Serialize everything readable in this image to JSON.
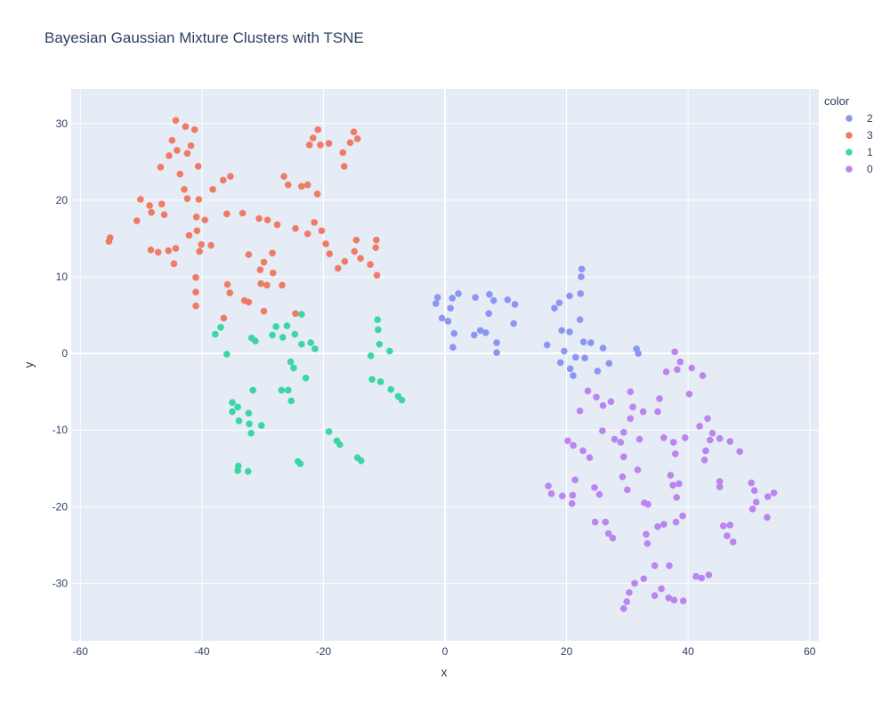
{
  "chart_data": {
    "type": "scatter",
    "title": "Bayesian Gaussian Mixture Clusters with TSNE",
    "xlabel": "x",
    "ylabel": "y",
    "xlim": [
      -61.5,
      61.5
    ],
    "ylim": [
      -37.5,
      34.5
    ],
    "xticks": [
      -60,
      -40,
      -20,
      0,
      20,
      40,
      60
    ],
    "yticks": [
      -30,
      -20,
      -10,
      0,
      10,
      20,
      30
    ],
    "grid": true,
    "legend": {
      "title": "color",
      "placement": "right"
    },
    "series": [
      {
        "name": "2",
        "color": "#8b96f3",
        "points": [
          [
            -1.5,
            6.5
          ],
          [
            -1.2,
            7.3
          ],
          [
            -0.5,
            4.6
          ],
          [
            0.5,
            4.2
          ],
          [
            0.9,
            5.9
          ],
          [
            1.2,
            7.2
          ],
          [
            1.5,
            2.6
          ],
          [
            1.3,
            0.8
          ],
          [
            2.2,
            7.8
          ],
          [
            5,
            7.3
          ],
          [
            4.8,
            2.4
          ],
          [
            5.8,
            3
          ],
          [
            6.7,
            2.7
          ],
          [
            7.2,
            5.2
          ],
          [
            7.3,
            7.7
          ],
          [
            8,
            6.9
          ],
          [
            8.5,
            1.4
          ],
          [
            8.5,
            0.1
          ],
          [
            10.3,
            7
          ],
          [
            11.5,
            6.4
          ],
          [
            11.3,
            3.9
          ],
          [
            16.8,
            1.1
          ],
          [
            18,
            5.9
          ],
          [
            18.8,
            6.6
          ],
          [
            19,
            -1.2
          ],
          [
            19.2,
            3
          ],
          [
            19.6,
            0.3
          ],
          [
            20.5,
            2.8
          ],
          [
            20.5,
            7.5
          ],
          [
            20.6,
            -2
          ],
          [
            21.1,
            -2.9
          ],
          [
            21.5,
            -0.5
          ],
          [
            22.2,
            4.4
          ],
          [
            22.3,
            7.8
          ],
          [
            22.4,
            10
          ],
          [
            22.5,
            11
          ],
          [
            22.8,
            1.5
          ],
          [
            23,
            -0.6
          ],
          [
            24,
            1.4
          ],
          [
            25.1,
            -2.3
          ],
          [
            26,
            0.7
          ],
          [
            27,
            -1.3
          ],
          [
            31.5,
            0.6
          ],
          [
            31.8,
            0
          ]
        ]
      },
      {
        "name": "3",
        "color": "#ef7b67",
        "points": [
          [
            -55.3,
            14.6
          ],
          [
            -55.1,
            15.1
          ],
          [
            -50.7,
            17.3
          ],
          [
            -50.1,
            20.1
          ],
          [
            -48.6,
            19.3
          ],
          [
            -48.3,
            18.4
          ],
          [
            -48.4,
            13.5
          ],
          [
            -47.2,
            13.2
          ],
          [
            -46.6,
            19.5
          ],
          [
            -46.2,
            18.1
          ],
          [
            -45.5,
            13.4
          ],
          [
            -44.6,
            11.7
          ],
          [
            -44.3,
            13.7
          ],
          [
            -46.8,
            24.3
          ],
          [
            -45.4,
            25.8
          ],
          [
            -44.9,
            27.8
          ],
          [
            -44.1,
            26.5
          ],
          [
            -43.6,
            23.4
          ],
          [
            -44.3,
            30.4
          ],
          [
            -42.9,
            21.4
          ],
          [
            -42.7,
            29.6
          ],
          [
            -42.4,
            26.1
          ],
          [
            -42.4,
            20.2
          ],
          [
            -42.1,
            15.4
          ],
          [
            -41.8,
            27.1
          ],
          [
            -41.2,
            29.2
          ],
          [
            -40.6,
            24.4
          ],
          [
            -40.8,
            16
          ],
          [
            -40.9,
            17.8
          ],
          [
            -40.5,
            20.1
          ],
          [
            -40.4,
            13.3
          ],
          [
            -40.1,
            14.2
          ],
          [
            -39.5,
            17.4
          ],
          [
            -38.5,
            14.1
          ],
          [
            -38.2,
            21.4
          ],
          [
            -41,
            9.9
          ],
          [
            -41,
            8
          ],
          [
            -41,
            6.2
          ],
          [
            -36.5,
            22.6
          ],
          [
            -35.9,
            18.2
          ],
          [
            -35.3,
            23.1
          ],
          [
            -35.8,
            9
          ],
          [
            -35.4,
            7.9
          ],
          [
            -36.4,
            4.6
          ],
          [
            -33.3,
            18.3
          ],
          [
            -33,
            6.9
          ],
          [
            -32.3,
            6.7
          ],
          [
            -32.3,
            12.9
          ],
          [
            -30.6,
            17.6
          ],
          [
            -30.4,
            10.9
          ],
          [
            -30.3,
            9.1
          ],
          [
            -29.8,
            11.9
          ],
          [
            -29.8,
            5.5
          ],
          [
            -29.2,
            17.4
          ],
          [
            -29.3,
            8.9
          ],
          [
            -28.4,
            13.1
          ],
          [
            -28.3,
            10.5
          ],
          [
            -27.6,
            16.8
          ],
          [
            -26.8,
            8.9
          ],
          [
            -26.5,
            23.1
          ],
          [
            -25.8,
            22
          ],
          [
            -24.6,
            16.3
          ],
          [
            -24.6,
            5.2
          ],
          [
            -23.6,
            21.8
          ],
          [
            -22.6,
            22
          ],
          [
            -22.6,
            15.6
          ],
          [
            -22.3,
            27.2
          ],
          [
            -21.7,
            28.1
          ],
          [
            -21.5,
            17.1
          ],
          [
            -21,
            20.8
          ],
          [
            -20.9,
            29.2
          ],
          [
            -20.5,
            27.2
          ],
          [
            -20.3,
            16
          ],
          [
            -19.6,
            14.3
          ],
          [
            -19.1,
            27.4
          ],
          [
            -19,
            13
          ],
          [
            -17.6,
            11.1
          ],
          [
            -16.8,
            26.2
          ],
          [
            -16.6,
            24.4
          ],
          [
            -16.5,
            12
          ],
          [
            -15.6,
            27.5
          ],
          [
            -15,
            28.9
          ],
          [
            -14.9,
            13.3
          ],
          [
            -14.6,
            14.8
          ],
          [
            -14.4,
            28
          ],
          [
            -13.9,
            12.4
          ],
          [
            -12.3,
            11.6
          ],
          [
            -11.3,
            14.8
          ],
          [
            -11.4,
            13.8
          ],
          [
            -11.2,
            10.2
          ]
        ]
      },
      {
        "name": "1",
        "color": "#3dd6a3",
        "points": [
          [
            -37.8,
            2.5
          ],
          [
            -36.9,
            3.4
          ],
          [
            -35.9,
            -0.1
          ],
          [
            -35,
            -6.4
          ],
          [
            -35,
            -7.6
          ],
          [
            -34.1,
            -7
          ],
          [
            -33.9,
            -8.8
          ],
          [
            -34,
            -14.7
          ],
          [
            -34.1,
            -15.3
          ],
          [
            -32.3,
            -7.8
          ],
          [
            -32.2,
            -9.2
          ],
          [
            -31.9,
            -10.4
          ],
          [
            -32.4,
            -15.4
          ],
          [
            -31.8,
            2
          ],
          [
            -31.6,
            -4.8
          ],
          [
            -31.2,
            1.6
          ],
          [
            -30.2,
            -9.4
          ],
          [
            -28.4,
            2.4
          ],
          [
            -27.8,
            3.5
          ],
          [
            -26.9,
            -4.8
          ],
          [
            -26.7,
            2.1
          ],
          [
            -26,
            3.6
          ],
          [
            -25.8,
            -4.8
          ],
          [
            -25.4,
            -1.1
          ],
          [
            -25.3,
            -6.2
          ],
          [
            -24.9,
            -1.9
          ],
          [
            -24.7,
            2.5
          ],
          [
            -24.2,
            -14.1
          ],
          [
            -23.8,
            -14.4
          ],
          [
            -23.6,
            5.1
          ],
          [
            -23.6,
            1.2
          ],
          [
            -22.9,
            -3.2
          ],
          [
            -22.1,
            1.4
          ],
          [
            -21.4,
            0.6
          ],
          [
            -19.1,
            -10.2
          ],
          [
            -17.8,
            -11.4
          ],
          [
            -17.3,
            -11.9
          ],
          [
            -14.4,
            -13.6
          ],
          [
            -13.8,
            -14
          ],
          [
            -12.2,
            -0.3
          ],
          [
            -12,
            -3.4
          ],
          [
            -11.1,
            4.4
          ],
          [
            -11,
            3.1
          ],
          [
            -10.8,
            1.2
          ],
          [
            -10.6,
            -3.7
          ],
          [
            -9.1,
            0.3
          ],
          [
            -8.9,
            -4.7
          ],
          [
            -7.7,
            -5.6
          ],
          [
            -7.1,
            -6.1
          ]
        ]
      },
      {
        "name": "0",
        "color": "#bb84ef",
        "points": [
          [
            17,
            -17.3
          ],
          [
            17.5,
            -18.3
          ],
          [
            19.3,
            -18.6
          ],
          [
            20.2,
            -11.4
          ],
          [
            20.9,
            -19.6
          ],
          [
            21,
            -18.5
          ],
          [
            21.1,
            -12
          ],
          [
            21.4,
            -16.5
          ],
          [
            22.2,
            -7.5
          ],
          [
            22.7,
            -12.7
          ],
          [
            23.5,
            -4.9
          ],
          [
            23.8,
            -13.6
          ],
          [
            24.6,
            -17.5
          ],
          [
            24.7,
            -22
          ],
          [
            24.9,
            -5.7
          ],
          [
            25.4,
            -18.4
          ],
          [
            25.9,
            -10.1
          ],
          [
            26,
            -6.8
          ],
          [
            26.4,
            -22
          ],
          [
            26.9,
            -23.5
          ],
          [
            27.3,
            -6.3
          ],
          [
            27.6,
            -24.1
          ],
          [
            27.9,
            -11.2
          ],
          [
            28.9,
            -11.6
          ],
          [
            29.2,
            -16.1
          ],
          [
            29.4,
            -10.3
          ],
          [
            29.4,
            -13.5
          ],
          [
            29.4,
            -33.3
          ],
          [
            29.9,
            -32.4
          ],
          [
            30,
            -17.8
          ],
          [
            30.3,
            -31.2
          ],
          [
            30.5,
            -5
          ],
          [
            30.5,
            -8.5
          ],
          [
            30.9,
            -7
          ],
          [
            31.2,
            -30
          ],
          [
            31.7,
            -15.2
          ],
          [
            32,
            -11.2
          ],
          [
            32.6,
            -7.6
          ],
          [
            32.7,
            -29.4
          ],
          [
            32.8,
            -19.5
          ],
          [
            33.1,
            -23.6
          ],
          [
            33.4,
            -19.7
          ],
          [
            33.3,
            -24.8
          ],
          [
            34.5,
            -31.6
          ],
          [
            34.5,
            -27.7
          ],
          [
            35,
            -22.6
          ],
          [
            35,
            -7.6
          ],
          [
            35.3,
            -5.9
          ],
          [
            35.6,
            -30.7
          ],
          [
            36,
            -22.3
          ],
          [
            36,
            -11
          ],
          [
            36.4,
            -2.4
          ],
          [
            36.9,
            -27.7
          ],
          [
            36.8,
            -31.9
          ],
          [
            37.1,
            -15.9
          ],
          [
            37.5,
            -17.2
          ],
          [
            37.6,
            -11.6
          ],
          [
            37.7,
            -32.2
          ],
          [
            37.9,
            -13.1
          ],
          [
            37.8,
            0.2
          ],
          [
            38,
            -22
          ],
          [
            38.1,
            -18.8
          ],
          [
            38.2,
            -2.1
          ],
          [
            38.5,
            -17
          ],
          [
            38.7,
            -1.1
          ],
          [
            39.1,
            -21.2
          ],
          [
            39.2,
            -32.3
          ],
          [
            39.5,
            -11
          ],
          [
            40.2,
            -5.3
          ],
          [
            40.6,
            -1.9
          ],
          [
            41.3,
            -29.1
          ],
          [
            41.9,
            -9.5
          ],
          [
            42.2,
            -29.3
          ],
          [
            42.4,
            -2.9
          ],
          [
            42.7,
            -13.9
          ],
          [
            42.9,
            -12.7
          ],
          [
            43.2,
            -8.5
          ],
          [
            43.4,
            -28.9
          ],
          [
            43.6,
            -11.3
          ],
          [
            44,
            -10.4
          ],
          [
            45.2,
            -11.1
          ],
          [
            45.2,
            -16.7
          ],
          [
            45.2,
            -17.4
          ],
          [
            45.8,
            -22.5
          ],
          [
            46.4,
            -23.8
          ],
          [
            46.9,
            -11.5
          ],
          [
            46.9,
            -22.4
          ],
          [
            47.4,
            -24.6
          ],
          [
            48.5,
            -12.8
          ],
          [
            50.4,
            -16.9
          ],
          [
            50.6,
            -20.3
          ],
          [
            50.9,
            -17.9
          ],
          [
            51.2,
            -19.4
          ],
          [
            53,
            -21.4
          ],
          [
            53.1,
            -18.7
          ],
          [
            54.1,
            -18.2
          ]
        ]
      }
    ]
  }
}
